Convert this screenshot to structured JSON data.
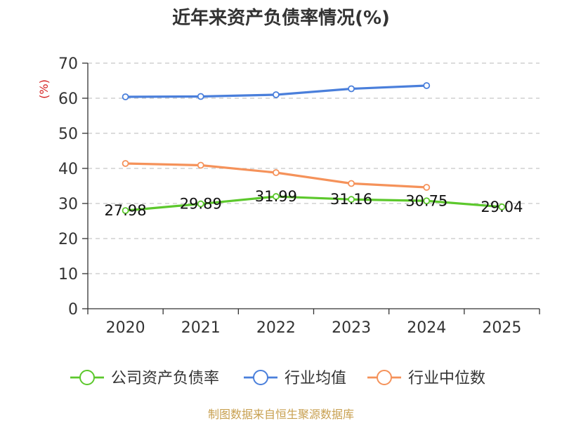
{
  "chart_data": {
    "type": "line",
    "title": "近年来资产负债率情况(%)",
    "ylabel": "(%)",
    "xlabel": "",
    "categories": [
      "2020",
      "2021",
      "2022",
      "2023",
      "2024",
      "2025"
    ],
    "ylim": [
      0,
      70
    ],
    "yticks": [
      0,
      10,
      20,
      30,
      40,
      50,
      60,
      70
    ],
    "grid": true,
    "legend_position": "bottom",
    "series": [
      {
        "name": "公司资产负债率",
        "color": "#5cc82c",
        "values": [
          27.98,
          29.89,
          31.99,
          31.16,
          30.75,
          29.04
        ],
        "labels": [
          "27.98",
          "29.89",
          "31.99",
          "31.16",
          "30.75",
          "29.04"
        ]
      },
      {
        "name": "行业均值",
        "color": "#4a7fdb",
        "values": [
          60.4,
          60.5,
          61.0,
          62.7,
          63.6,
          null
        ]
      },
      {
        "name": "行业中位数",
        "color": "#f5925a",
        "values": [
          41.4,
          40.9,
          38.8,
          35.7,
          34.6,
          null
        ]
      }
    ]
  },
  "source": {
    "text": "制图数据来自恒生聚源数据库",
    "color": "#c8a050"
  },
  "ylabel_color": "#d42020"
}
